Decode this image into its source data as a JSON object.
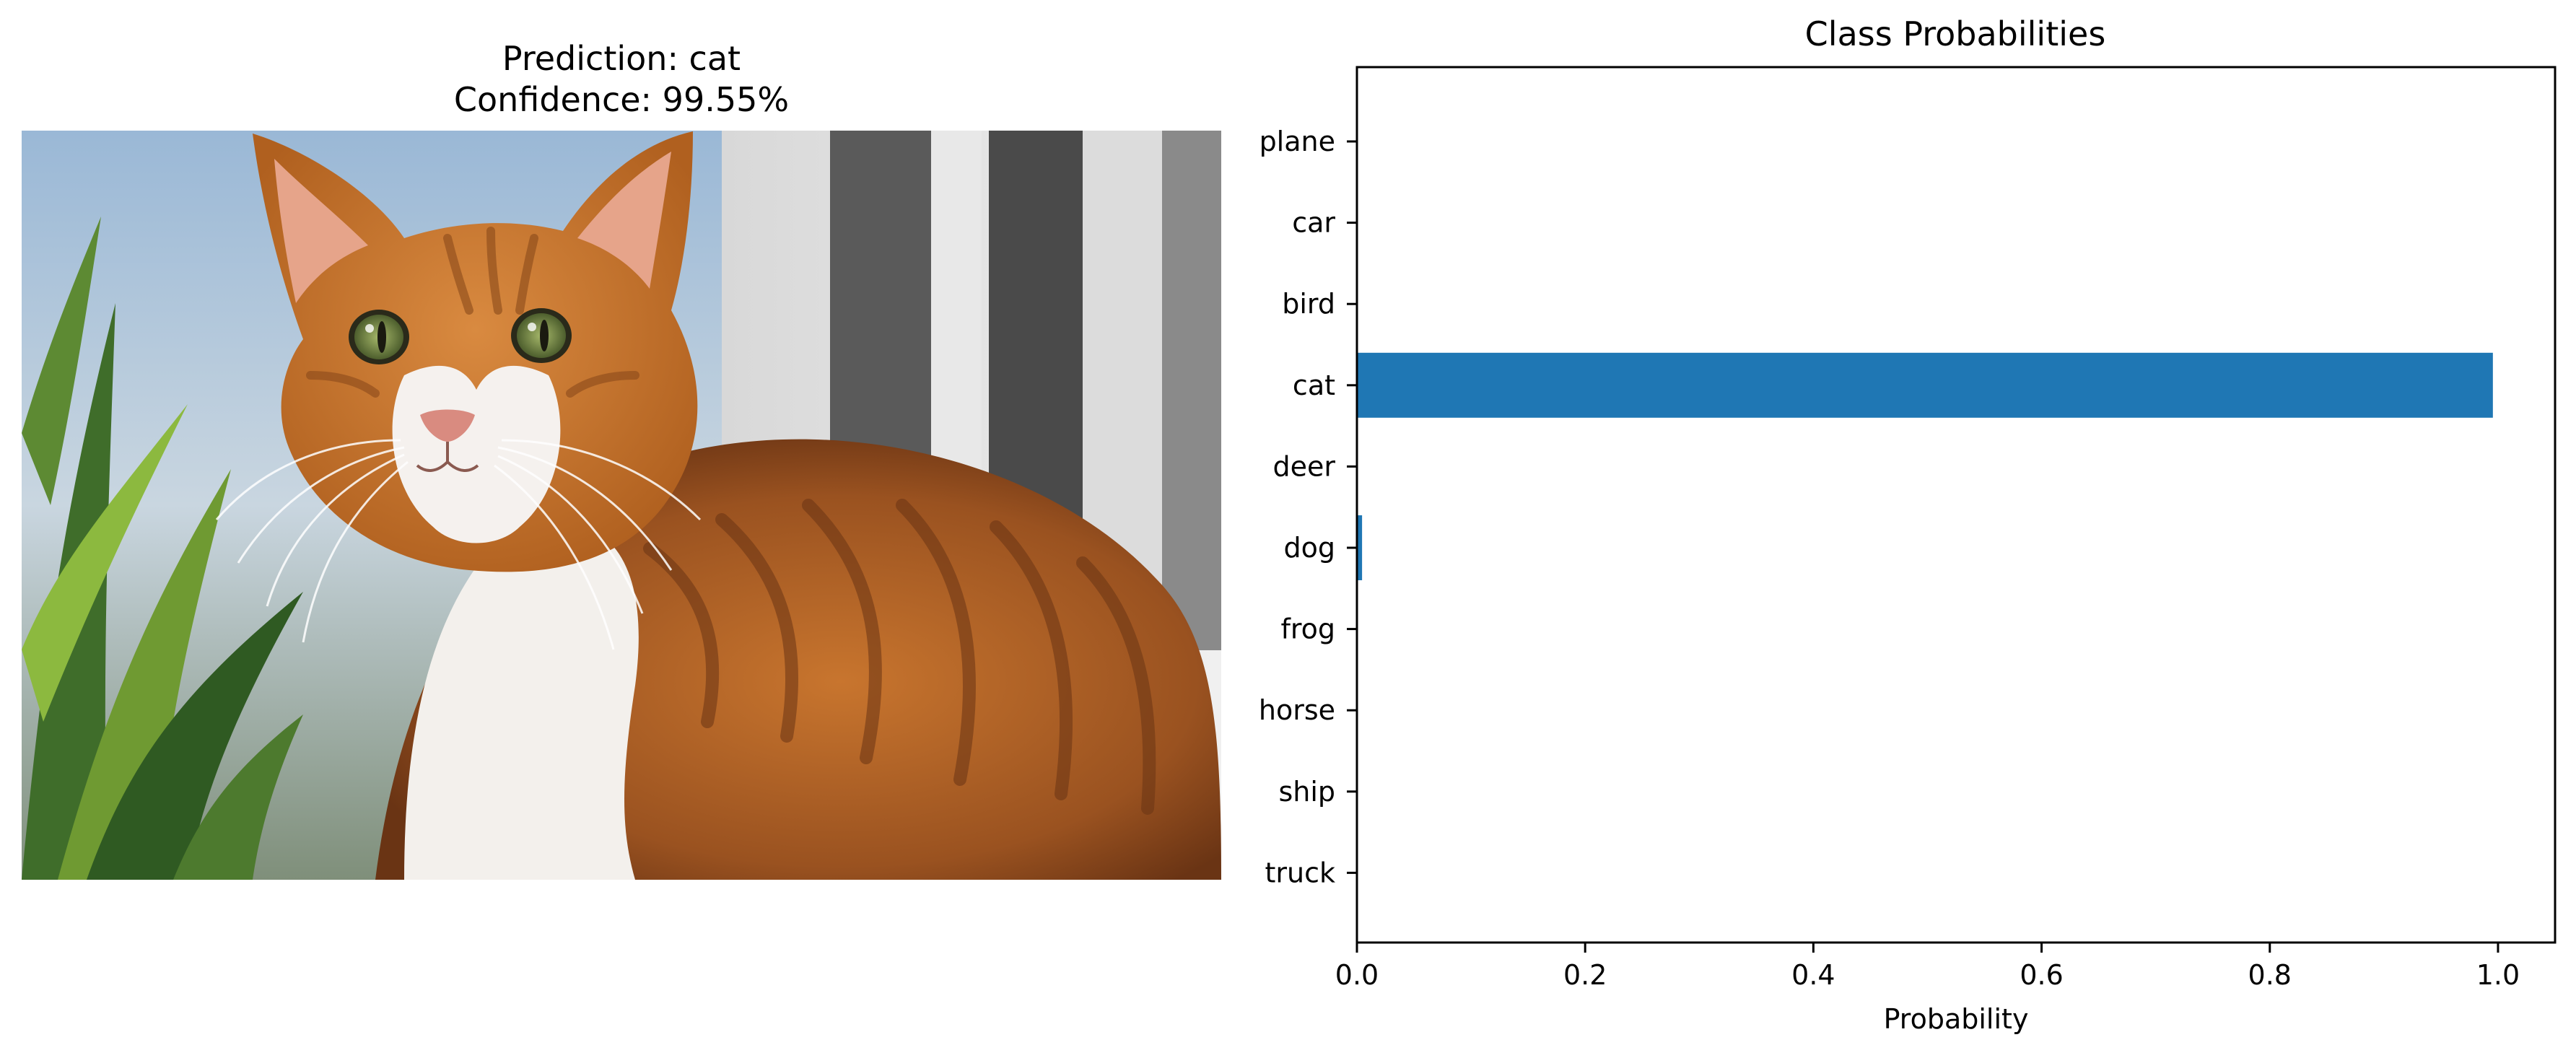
{
  "left_panel": {
    "title_line1": "Prediction: cat",
    "title_line2": "Confidence: 99.55%",
    "photo_subject": "cat-photo"
  },
  "colors": {
    "bar": "#1f77b4",
    "axis": "#000000",
    "text": "#000000"
  },
  "chart_data": {
    "type": "bar",
    "orientation": "horizontal",
    "title": "Class Probabilities",
    "xlabel": "Probability",
    "ylabel": "",
    "categories": [
      "plane",
      "car",
      "bird",
      "cat",
      "deer",
      "dog",
      "frog",
      "horse",
      "ship",
      "truck"
    ],
    "values": [
      0.0,
      0.0,
      0.0,
      0.9955,
      0.0,
      0.0045,
      0.0,
      0.0,
      0.0,
      0.0
    ],
    "xlim": [
      0,
      1.05
    ],
    "xticks": [
      0.0,
      0.2,
      0.4,
      0.6,
      0.8,
      1.0
    ],
    "xtick_labels": [
      "0.0",
      "0.2",
      "0.4",
      "0.6",
      "0.8",
      "1.0"
    ],
    "grid": false,
    "legend": "none"
  }
}
